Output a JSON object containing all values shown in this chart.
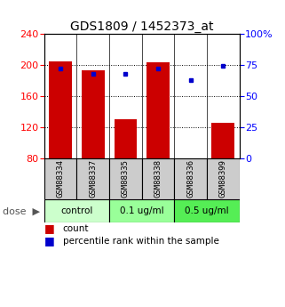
{
  "title": "GDS1809 / 1452373_at",
  "samples": [
    "GSM88334",
    "GSM88337",
    "GSM88335",
    "GSM88338",
    "GSM88336",
    "GSM88399"
  ],
  "counts": [
    205,
    193,
    130,
    203,
    80,
    125
  ],
  "percentiles": [
    72,
    68,
    68,
    72,
    63,
    74
  ],
  "bar_color": "#cc0000",
  "dot_color": "#0000cc",
  "ylim_left": [
    80,
    240
  ],
  "ylim_right": [
    0,
    100
  ],
  "yticks_left": [
    80,
    120,
    160,
    200,
    240
  ],
  "yticks_right": [
    0,
    25,
    50,
    75,
    100
  ],
  "yticklabels_right": [
    "0",
    "25",
    "50",
    "75",
    "100%"
  ],
  "hlines": [
    120,
    160,
    200
  ],
  "bar_width": 0.7,
  "background_color": "#ffffff",
  "legend_count": "count",
  "legend_percentile": "percentile rank within the sample",
  "group_ranges": [
    [
      0,
      1,
      "control",
      "#ccffcc"
    ],
    [
      2,
      3,
      "0.1 ug/ml",
      "#99ff99"
    ],
    [
      4,
      5,
      "0.5 ug/ml",
      "#55ee55"
    ]
  ],
  "sample_box_color": "#cccccc",
  "dose_arrow": "dose  ▶",
  "title_fontsize": 10,
  "tick_fontsize": 8,
  "label_fontsize": 7.5
}
